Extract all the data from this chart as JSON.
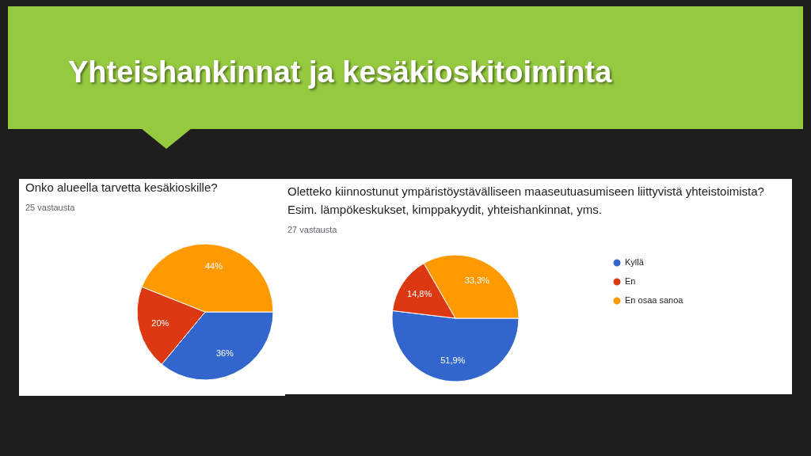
{
  "chart_data": [
    {
      "type": "other",
      "title": "Yhteishankinnat ja kesäkioskitoiminta"
    },
    {
      "type": "pie",
      "title": "Onko alueella tarvetta kesäkioskille?",
      "subtitle": "25 vastausta",
      "categories": [
        null,
        null,
        null
      ],
      "values": [
        36,
        20,
        44
      ],
      "colors": [
        "#3366cc",
        "#dc3912",
        "#ff9900"
      ],
      "value_labels": [
        "36%",
        "20%",
        "44%"
      ]
    },
    {
      "type": "pie",
      "title": "Oletteko kiinnostunut ympäristöystävälliseen maaseutuasumiseen liittyvistä yhteistoimista?",
      "subtitle": "Esim. lämpökeskukset, kimppakyydit, yhteishankinnat, yms.",
      "annotations": [
        "27 vastausta"
      ],
      "categories": [
        "Kyllä",
        "En",
        "En osaa sanoa"
      ],
      "values": [
        51.9,
        14.8,
        33.3
      ],
      "colors": [
        "#3366cc",
        "#dc3912",
        "#ff9900"
      ],
      "value_labels": [
        "51,9%",
        "14,8%",
        "33,3%"
      ],
      "legend": "right"
    }
  ]
}
